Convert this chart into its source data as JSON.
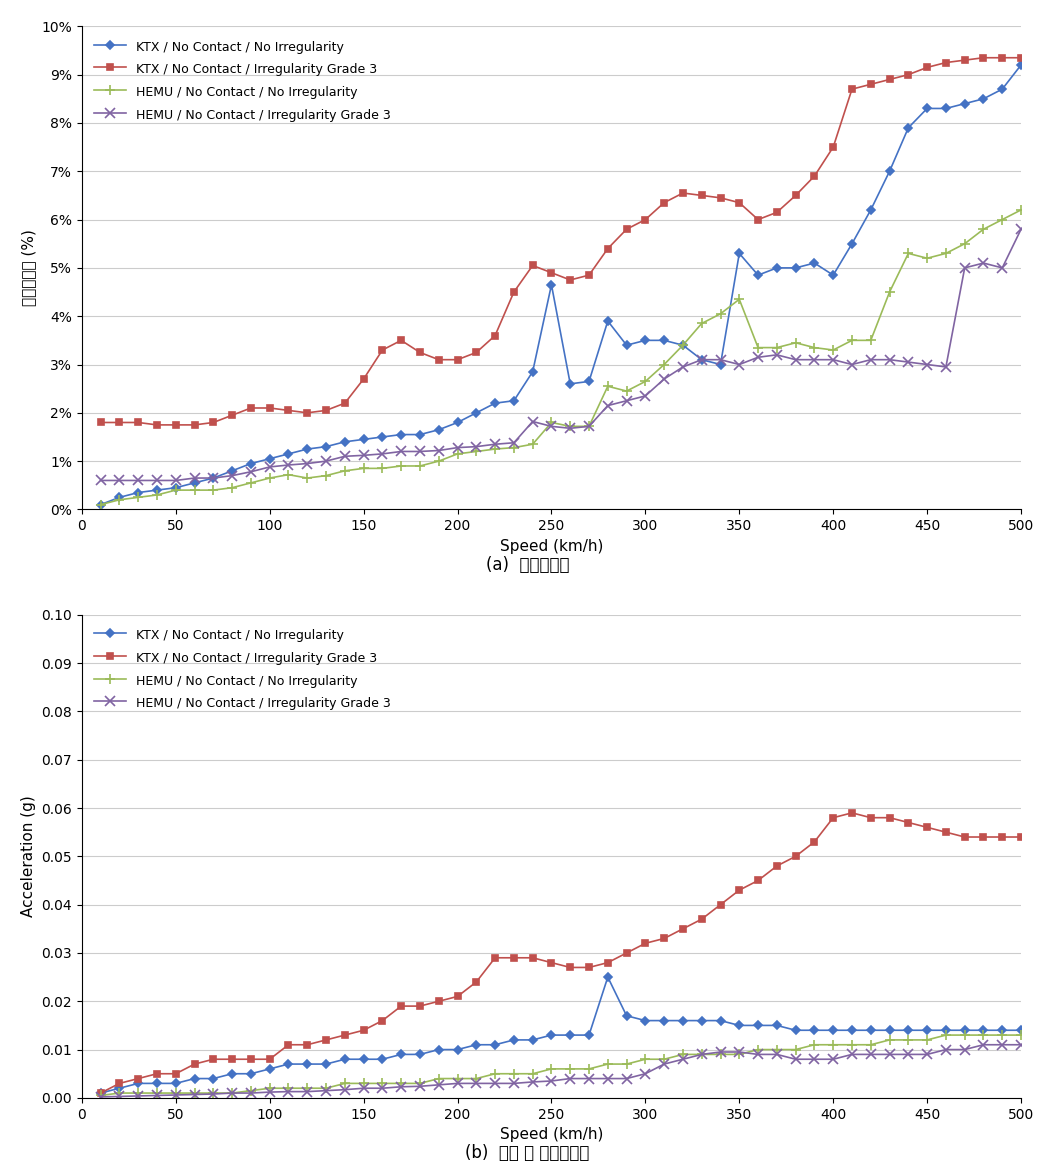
{
  "legend_labels": [
    "KTX / No Contact / No Irregularity",
    "KTX / No Contact / Irregularity Grade 3",
    "HEMU / No Contact / No Irregularity",
    "HEMU / No Contact / Irregularity Grade 3"
  ],
  "colors": [
    "#4472C4",
    "#C0504D",
    "#9BBB59",
    "#8064A2"
  ],
  "markers": [
    "D",
    "s",
    "+",
    "x"
  ],
  "xlabel": "Speed (km/h)",
  "ylabel_top": "윤중감소율 (%)",
  "ylabel_bot": "Acceleration (g)",
  "caption_top": "(a)  윤중감소율",
  "caption_bot": "(b)  열차 내 연직가속도",
  "xlim": [
    0,
    500
  ],
  "speeds": [
    10,
    20,
    30,
    40,
    50,
    60,
    70,
    80,
    90,
    100,
    110,
    120,
    130,
    140,
    150,
    160,
    170,
    180,
    190,
    200,
    210,
    220,
    230,
    240,
    250,
    260,
    270,
    280,
    290,
    300,
    310,
    320,
    330,
    340,
    350,
    360,
    370,
    380,
    390,
    400,
    410,
    420,
    430,
    440,
    450,
    460,
    470,
    480,
    490,
    500
  ],
  "top_y1": [
    0.1,
    0.25,
    0.35,
    0.4,
    0.45,
    0.55,
    0.65,
    0.8,
    0.95,
    1.05,
    1.15,
    1.25,
    1.3,
    1.4,
    1.45,
    1.5,
    1.55,
    1.55,
    1.65,
    1.8,
    2.0,
    2.2,
    2.25,
    2.85,
    4.65,
    2.6,
    2.65,
    3.9,
    3.4,
    3.5,
    3.5,
    3.4,
    3.1,
    3.0,
    5.3,
    4.85,
    5.0,
    5.0,
    5.1,
    4.85,
    5.5,
    6.2,
    7.0,
    7.9,
    8.3,
    8.3,
    8.4,
    8.5,
    8.7,
    9.2
  ],
  "top_y2": [
    1.8,
    1.8,
    1.8,
    1.75,
    1.75,
    1.75,
    1.8,
    1.95,
    2.1,
    2.1,
    2.05,
    2.0,
    2.05,
    2.2,
    2.7,
    3.3,
    3.5,
    3.25,
    3.1,
    3.1,
    3.25,
    3.6,
    4.5,
    5.05,
    4.9,
    4.75,
    4.85,
    5.4,
    5.8,
    6.0,
    6.35,
    6.55,
    6.5,
    6.45,
    6.35,
    6.0,
    6.15,
    6.5,
    6.9,
    7.5,
    8.7,
    8.8,
    8.9,
    9.0,
    9.15,
    9.25,
    9.3,
    9.35,
    9.35,
    9.35
  ],
  "top_y3": [
    0.1,
    0.2,
    0.25,
    0.3,
    0.4,
    0.4,
    0.4,
    0.45,
    0.55,
    0.65,
    0.72,
    0.65,
    0.7,
    0.8,
    0.85,
    0.85,
    0.9,
    0.9,
    1.0,
    1.15,
    1.2,
    1.25,
    1.28,
    1.35,
    1.8,
    1.72,
    1.72,
    2.55,
    2.45,
    2.65,
    3.0,
    3.4,
    3.85,
    4.05,
    4.35,
    3.35,
    3.35,
    3.45,
    3.35,
    3.3,
    3.5,
    3.5,
    4.5,
    5.3,
    5.2,
    5.3,
    5.5,
    5.8,
    6.0,
    6.2
  ],
  "top_y4": [
    0.6,
    0.6,
    0.6,
    0.6,
    0.6,
    0.65,
    0.65,
    0.7,
    0.78,
    0.88,
    0.92,
    0.95,
    1.0,
    1.1,
    1.12,
    1.15,
    1.2,
    1.2,
    1.22,
    1.28,
    1.3,
    1.35,
    1.38,
    1.82,
    1.72,
    1.68,
    1.72,
    2.15,
    2.25,
    2.35,
    2.7,
    2.95,
    3.1,
    3.1,
    3.0,
    3.15,
    3.2,
    3.1,
    3.1,
    3.1,
    3.0,
    3.1,
    3.1,
    3.05,
    3.0,
    2.95,
    5.0,
    5.1,
    5.0,
    5.8
  ],
  "bot_y1": [
    0.001,
    0.002,
    0.003,
    0.003,
    0.003,
    0.004,
    0.004,
    0.005,
    0.005,
    0.006,
    0.007,
    0.007,
    0.007,
    0.008,
    0.008,
    0.008,
    0.009,
    0.009,
    0.01,
    0.01,
    0.011,
    0.011,
    0.012,
    0.012,
    0.013,
    0.013,
    0.013,
    0.025,
    0.017,
    0.016,
    0.016,
    0.016,
    0.016,
    0.016,
    0.015,
    0.015,
    0.015,
    0.014,
    0.014,
    0.014,
    0.014,
    0.014,
    0.014,
    0.014,
    0.014,
    0.014,
    0.014,
    0.014,
    0.014,
    0.014
  ],
  "bot_y2": [
    0.001,
    0.003,
    0.004,
    0.005,
    0.005,
    0.007,
    0.008,
    0.008,
    0.008,
    0.008,
    0.011,
    0.011,
    0.012,
    0.013,
    0.014,
    0.016,
    0.019,
    0.019,
    0.02,
    0.021,
    0.024,
    0.029,
    0.029,
    0.029,
    0.028,
    0.027,
    0.027,
    0.028,
    0.03,
    0.032,
    0.033,
    0.035,
    0.037,
    0.04,
    0.043,
    0.045,
    0.048,
    0.05,
    0.053,
    0.058,
    0.059,
    0.058,
    0.058,
    0.057,
    0.056,
    0.055,
    0.054,
    0.054,
    0.054,
    0.054
  ],
  "bot_y3": [
    0.0005,
    0.001,
    0.001,
    0.001,
    0.001,
    0.001,
    0.001,
    0.001,
    0.0015,
    0.002,
    0.002,
    0.002,
    0.002,
    0.003,
    0.003,
    0.003,
    0.003,
    0.003,
    0.004,
    0.004,
    0.004,
    0.005,
    0.005,
    0.005,
    0.006,
    0.006,
    0.006,
    0.007,
    0.007,
    0.008,
    0.008,
    0.009,
    0.009,
    0.009,
    0.009,
    0.01,
    0.01,
    0.01,
    0.011,
    0.011,
    0.011,
    0.011,
    0.012,
    0.012,
    0.012,
    0.013,
    0.013,
    0.013,
    0.013,
    0.013
  ],
  "bot_y4": [
    0.0002,
    0.0003,
    0.0004,
    0.0005,
    0.0006,
    0.0007,
    0.0008,
    0.001,
    0.001,
    0.0012,
    0.0013,
    0.0013,
    0.0015,
    0.0017,
    0.002,
    0.002,
    0.0023,
    0.0024,
    0.0027,
    0.003,
    0.003,
    0.003,
    0.003,
    0.0033,
    0.0035,
    0.004,
    0.004,
    0.004,
    0.004,
    0.005,
    0.007,
    0.008,
    0.009,
    0.0095,
    0.0095,
    0.009,
    0.009,
    0.008,
    0.008,
    0.008,
    0.009,
    0.009,
    0.009,
    0.009,
    0.009,
    0.01,
    0.01,
    0.011,
    0.011,
    0.011
  ]
}
